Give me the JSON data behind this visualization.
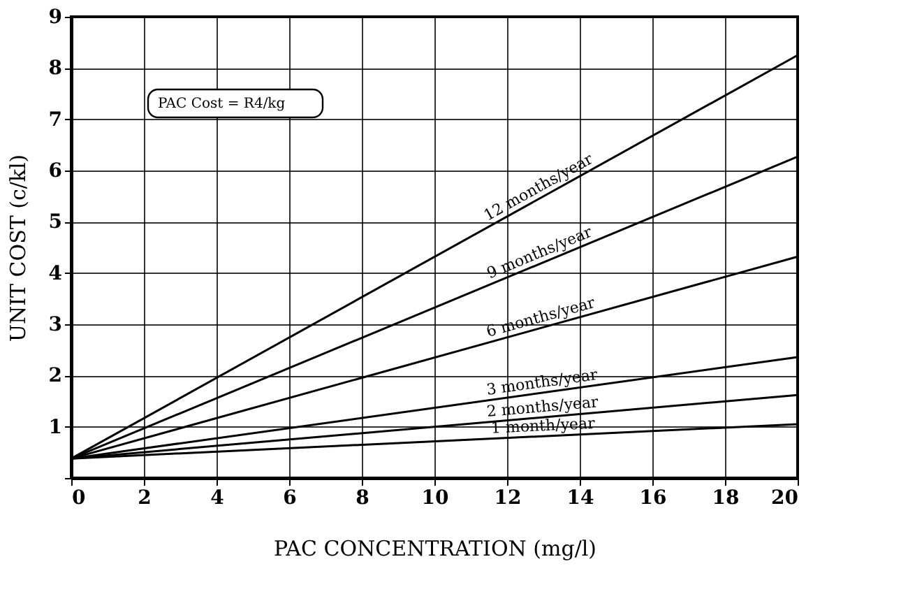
{
  "chart_data": {
    "type": "line",
    "xlabel": "PAC CONCENTRATION (mg/l)",
    "ylabel": "UNIT COST (c/kl)",
    "x": [
      0,
      20
    ],
    "series": [
      {
        "name": "12 months/year",
        "color": "#000000",
        "values": [
          0.38,
          8.25
        ]
      },
      {
        "name": "9 months/year",
        "color": "#000000",
        "values": [
          0.38,
          6.27
        ]
      },
      {
        "name": "6 months/year",
        "color": "#000000",
        "values": [
          0.38,
          4.32
        ]
      },
      {
        "name": "3 months/year",
        "color": "#000000",
        "values": [
          0.38,
          2.36
        ]
      },
      {
        "name": "2 months/year",
        "color": "#000000",
        "values": [
          0.38,
          1.62
        ]
      },
      {
        "name": "1 month/year",
        "color": "#000000",
        "values": [
          0.38,
          1.05
        ]
      }
    ],
    "xlim": [
      0,
      20
    ],
    "xticks": [
      0,
      2,
      4,
      6,
      8,
      10,
      12,
      14,
      16,
      18,
      20
    ],
    "ylim": [
      0,
      9
    ],
    "yticks": [
      {
        "value": 0,
        "label": null
      },
      1,
      2,
      3,
      4,
      5,
      6,
      7,
      8,
      9
    ],
    "grid": true,
    "legend": false,
    "marker": "none",
    "line_style": "solid",
    "annotations": [
      "PAC Cost = R4/kg"
    ]
  }
}
